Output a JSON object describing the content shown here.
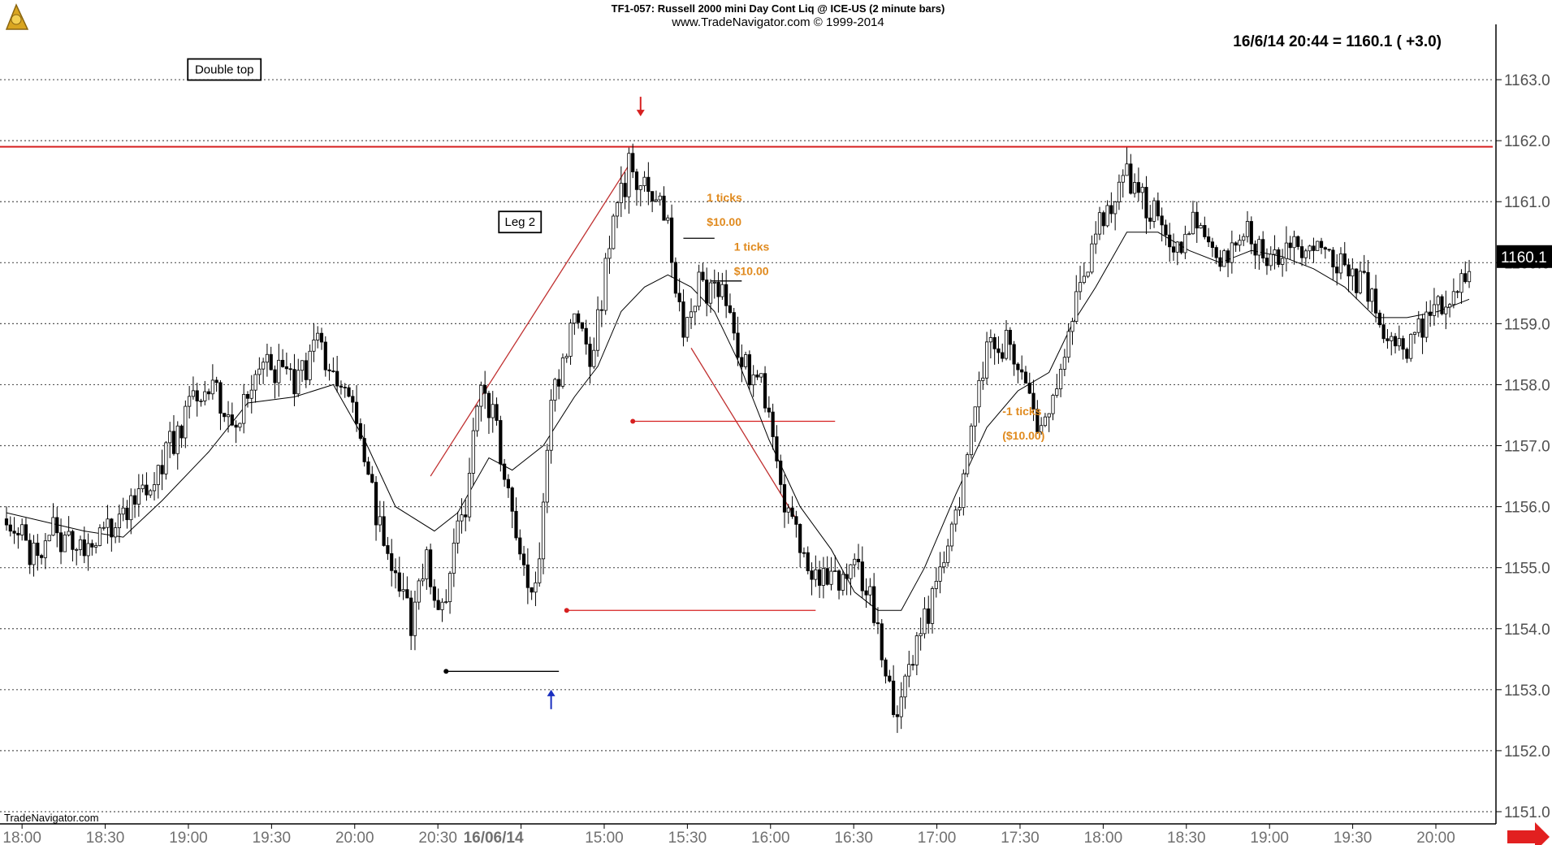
{
  "header": {
    "line1": "TF1-057:  Russell 2000 mini Day Cont Liq @ ICE-US  (2 minute bars)",
    "line2": "www.TradeNavigator.com © 1999-2014",
    "quote": "16/6/14 20:44 = 1160.1   ( +3.0)",
    "watermark": "TradeNavigator.com",
    "logo_icon": "trade-navigator-logo-icon",
    "nav_arrow_icon": "right-arrow-icon"
  },
  "chart_data": {
    "type": "candlestick",
    "title": "TF1-057:  Russell 2000 mini Day Cont Liq @ ICE-US  (2 minute bars)",
    "ylim": [
      1150.8,
      1163.8
    ],
    "y_ticks": [
      "1163.0",
      "1162.0",
      "1161.0",
      "1160.0",
      "1159.0",
      "1158.0",
      "1157.0",
      "1156.0",
      "1155.0",
      "1154.0",
      "1153.0",
      "1152.0",
      "1151.0"
    ],
    "x_ticks": [
      "18:00",
      "18:30",
      "19:00",
      "19:30",
      "20:00",
      "20:30",
      "16/06/14",
      "15:00",
      "15:30",
      "16:00",
      "16:30",
      "17:00",
      "17:30",
      "18:00",
      "18:30",
      "19:00",
      "19:30",
      "20:00"
    ],
    "last_price_label": "1160.1",
    "grid": "horizontal dotted",
    "resistance_level": 1161.9,
    "path": [
      [
        0,
        1155.9
      ],
      [
        8,
        1155.1
      ],
      [
        12,
        1155.7
      ],
      [
        18,
        1155.2
      ],
      [
        24,
        1155.4
      ],
      [
        32,
        1156.0
      ],
      [
        42,
        1157.0
      ],
      [
        52,
        1158.1
      ],
      [
        58,
        1157.4
      ],
      [
        66,
        1158.3
      ],
      [
        74,
        1158.0
      ],
      [
        80,
        1158.6
      ],
      [
        88,
        1157.7
      ],
      [
        92,
        1156.8
      ],
      [
        98,
        1155.0
      ],
      [
        104,
        1154.1
      ],
      [
        108,
        1155.1
      ],
      [
        112,
        1154.3
      ],
      [
        118,
        1156.1
      ],
      [
        122,
        1157.9
      ],
      [
        126,
        1157.3
      ],
      [
        132,
        1155.0
      ],
      [
        136,
        1154.6
      ],
      [
        140,
        1157.7
      ],
      [
        146,
        1159.0
      ],
      [
        150,
        1158.3
      ],
      [
        156,
        1160.6
      ],
      [
        160,
        1161.6
      ],
      [
        166,
        1161.1
      ],
      [
        170,
        1160.6
      ],
      [
        174,
        1158.8
      ],
      [
        178,
        1159.6
      ],
      [
        184,
        1159.4
      ],
      [
        190,
        1158.3
      ],
      [
        196,
        1157.8
      ],
      [
        200,
        1155.9
      ],
      [
        206,
        1155.0
      ],
      [
        212,
        1154.7
      ],
      [
        218,
        1155.2
      ],
      [
        224,
        1154.1
      ],
      [
        228,
        1152.6
      ],
      [
        234,
        1153.8
      ],
      [
        240,
        1154.9
      ],
      [
        246,
        1156.4
      ],
      [
        252,
        1158.5
      ],
      [
        258,
        1158.7
      ],
      [
        262,
        1158.1
      ],
      [
        266,
        1157.2
      ],
      [
        270,
        1157.8
      ],
      [
        276,
        1159.6
      ],
      [
        282,
        1160.8
      ],
      [
        288,
        1161.4
      ],
      [
        294,
        1160.9
      ],
      [
        300,
        1160.1
      ],
      [
        306,
        1160.7
      ],
      [
        312,
        1159.8
      ],
      [
        318,
        1160.6
      ],
      [
        324,
        1160.1
      ],
      [
        330,
        1160.3
      ],
      [
        336,
        1160.2
      ],
      [
        342,
        1160.1
      ],
      [
        348,
        1159.7
      ],
      [
        354,
        1159.0
      ],
      [
        360,
        1158.7
      ],
      [
        366,
        1159.2
      ],
      [
        372,
        1159.6
      ],
      [
        376,
        1160.0
      ]
    ],
    "moving_average": [
      [
        0,
        1155.9
      ],
      [
        20,
        1155.6
      ],
      [
        30,
        1155.5
      ],
      [
        40,
        1156.1
      ],
      [
        52,
        1156.9
      ],
      [
        62,
        1157.7
      ],
      [
        74,
        1157.8
      ],
      [
        84,
        1158.0
      ],
      [
        92,
        1157.1
      ],
      [
        100,
        1156.0
      ],
      [
        110,
        1155.6
      ],
      [
        116,
        1155.9
      ],
      [
        124,
        1156.8
      ],
      [
        130,
        1156.6
      ],
      [
        138,
        1157.0
      ],
      [
        146,
        1157.8
      ],
      [
        152,
        1158.3
      ],
      [
        158,
        1159.2
      ],
      [
        164,
        1159.6
      ],
      [
        170,
        1159.8
      ],
      [
        176,
        1159.6
      ],
      [
        182,
        1159.2
      ],
      [
        188,
        1158.4
      ],
      [
        196,
        1157.1
      ],
      [
        204,
        1156.0
      ],
      [
        212,
        1155.3
      ],
      [
        218,
        1154.6
      ],
      [
        224,
        1154.3
      ],
      [
        230,
        1154.3
      ],
      [
        236,
        1155.0
      ],
      [
        244,
        1156.2
      ],
      [
        252,
        1157.3
      ],
      [
        260,
        1157.9
      ],
      [
        268,
        1158.2
      ],
      [
        274,
        1159.0
      ],
      [
        280,
        1159.6
      ],
      [
        288,
        1160.5
      ],
      [
        296,
        1160.5
      ],
      [
        304,
        1160.2
      ],
      [
        312,
        1160.0
      ],
      [
        320,
        1160.2
      ],
      [
        328,
        1160.1
      ],
      [
        336,
        1159.9
      ],
      [
        344,
        1159.6
      ],
      [
        352,
        1159.1
      ],
      [
        360,
        1159.1
      ],
      [
        368,
        1159.2
      ],
      [
        376,
        1159.4
      ]
    ],
    "markers": [
      {
        "type": "down-arrow",
        "bar": 163,
        "price": 1162.4,
        "color": "#d62020"
      },
      {
        "type": "up-arrow",
        "bar": 140,
        "price": 1153.0,
        "color": "#1a2fbf"
      }
    ],
    "annotations": [
      {
        "label": "Double top",
        "bar": 56,
        "price": 1163.1,
        "style": "box"
      },
      {
        "label": "Leg 2",
        "bar": 132,
        "price": 1160.6,
        "style": "box"
      },
      {
        "label": "1 ticks",
        "bar": 180,
        "price": 1161.0,
        "style": "orange"
      },
      {
        "label": "$10.00",
        "bar": 180,
        "price": 1160.6,
        "style": "orange"
      },
      {
        "label": "1 ticks",
        "bar": 187,
        "price": 1160.2,
        "style": "orange"
      },
      {
        "label": "$10.00",
        "bar": 187,
        "price": 1159.8,
        "style": "orange"
      },
      {
        "label": "-1 ticks",
        "bar": 256,
        "price": 1157.5,
        "style": "orange"
      },
      {
        "label": "($10.00)",
        "bar": 256,
        "price": 1157.1,
        "style": "orange"
      }
    ],
    "lines": [
      {
        "from": [
          109,
          1156.5
        ],
        "to": [
          160,
          1161.6
        ],
        "color": "#c03030"
      },
      {
        "from": [
          176,
          1158.6
        ],
        "to": [
          203,
          1155.8
        ],
        "color": "#c03030"
      },
      {
        "from": [
          161,
          1157.4
        ],
        "to": [
          213,
          1157.4
        ],
        "color": "#d62020",
        "dot": true
      },
      {
        "from": [
          144,
          1154.3
        ],
        "to": [
          208,
          1154.3
        ],
        "color": "#d62020",
        "dot": true
      },
      {
        "from": [
          113,
          1153.3
        ],
        "to": [
          142,
          1153.3
        ],
        "color": "#000000",
        "dot": true
      },
      {
        "from": [
          174,
          1160.4
        ],
        "to": [
          182,
          1160.4
        ],
        "color": "#000000"
      },
      {
        "from": [
          181,
          1159.7
        ],
        "to": [
          189,
          1159.7
        ],
        "color": "#000000"
      }
    ]
  }
}
